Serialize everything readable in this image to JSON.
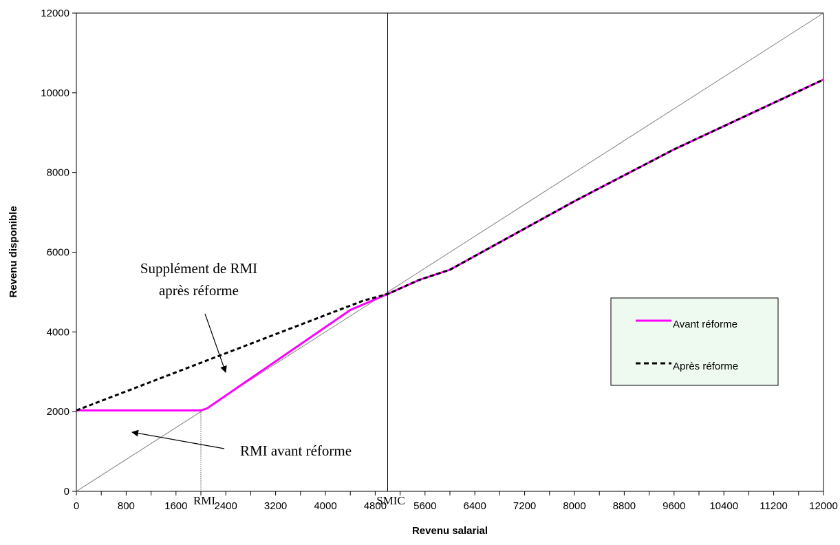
{
  "chart_data": {
    "type": "line",
    "xlabel": "Revenu salarial",
    "ylabel": "Revenu disponible",
    "xlim": [
      0,
      12000
    ],
    "ylim": [
      0,
      12000
    ],
    "x_ticks": [
      0,
      800,
      1600,
      2400,
      3200,
      4000,
      4800,
      5600,
      6400,
      7200,
      8000,
      8800,
      9600,
      10400,
      11200,
      12000
    ],
    "x_tick_labels": [
      "0",
      "800",
      "1600",
      "2400",
      "3200",
      "4000",
      "4800",
      "5600",
      "6400",
      "7200",
      "8000",
      "8800",
      "9600",
      "10400",
      "11200",
      "12000"
    ],
    "x_minor_step": 400,
    "y_ticks": [
      0,
      2000,
      4000,
      6000,
      8000,
      10000,
      12000
    ],
    "y_tick_labels": [
      "0",
      "2000",
      "4000",
      "6000",
      "8000",
      "10000",
      "12000"
    ],
    "grid": false,
    "legend_position": "right",
    "series": [
      {
        "name": "Avant réforme",
        "color": "#ff00ff",
        "style": "solid",
        "x": [
          0,
          2000,
          2100,
          4400,
          5000,
          5500,
          6000,
          8000,
          9600,
          12000
        ],
        "y": [
          2030,
          2030,
          2080,
          4550,
          4950,
          5300,
          5560,
          7280,
          8580,
          10330
        ]
      },
      {
        "name": "Après réforme",
        "color": "#000000",
        "style": "dashed",
        "x": [
          0,
          4600,
          5000,
          5500,
          6000,
          8000,
          9600,
          12000
        ],
        "y": [
          2030,
          4780,
          4950,
          5300,
          5560,
          7280,
          8580,
          10330
        ]
      }
    ],
    "reference_lines": {
      "diagonal": {
        "from": [
          0,
          0
        ],
        "to": [
          12000,
          12000
        ],
        "color": "#808080"
      },
      "smic_x": 5000,
      "rmi_x": 2000,
      "rmi_y": 2030
    },
    "annotations": {
      "rmi_axis_label": "RMI",
      "smic_axis_label": "SMIC",
      "supplement_line1": "Supplément de RMI",
      "supplement_line2": "après réforme",
      "rmi_avant": "RMI avant réforme"
    },
    "legend": {
      "background": "#eefaf0",
      "items": [
        {
          "label": "Avant réforme",
          "color": "#ff00ff",
          "style": "solid"
        },
        {
          "label": "Après réforme",
          "color": "#000000",
          "style": "dashed"
        }
      ]
    }
  }
}
